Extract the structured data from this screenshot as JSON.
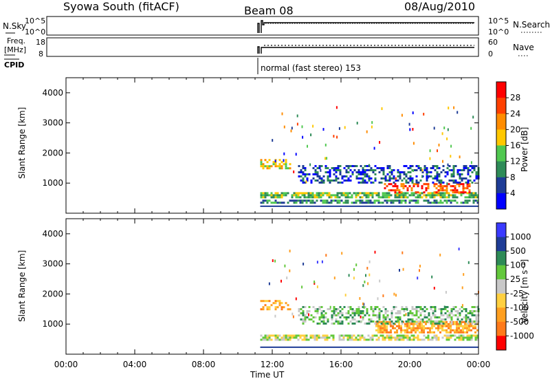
{
  "header": {
    "station": "Syowa South (fitACF)",
    "beam": "Beam 08",
    "date": "08/Aug/2010"
  },
  "top_panels": {
    "nsky_label": "N.Sky",
    "nsky_ticks": [
      "10^5",
      "10^0"
    ],
    "nsearch_label": "N.Search",
    "nsearch_ticks": [
      "10^5",
      "10^0"
    ],
    "freq_label": "Freq.",
    "freq_unit": "[MHz]",
    "freq_ticks": [
      "18",
      "8"
    ],
    "nave_label": "Nave",
    "nave_ticks": [
      "60",
      "0"
    ],
    "cpid_label": "CPID",
    "cpid_text": "normal (fast stereo) 153"
  },
  "x_axis": {
    "label": "Time UT",
    "ticks": [
      "00:00",
      "04:00",
      "08:00",
      "12:00",
      "16:00",
      "20:00",
      "00:00"
    ]
  },
  "colors": {
    "power_scale": [
      "#0000ff",
      "#1e3c96",
      "#2e8b57",
      "#50c850",
      "#ffc800",
      "#ff8c00",
      "#ff4000",
      "#ff0000"
    ],
    "velocity_scale": [
      "#ff0000",
      "#ff7a1a",
      "#ff9f20",
      "#ffd040",
      "#c8c8c8",
      "#63c83c",
      "#2e8b57",
      "#1e3c96",
      "#3a3aff"
    ]
  },
  "chart_data": [
    {
      "type": "heatmap",
      "panel": "power",
      "ylabel": "Slant Range [km]",
      "xlabel": "Time UT",
      "ylim": [
        0,
        4500
      ],
      "y_ticks": [
        "1000",
        "2000",
        "3000",
        "4000"
      ],
      "colorbar_label": "Power [dB]",
      "colorbar_ticks": [
        "4",
        "8",
        "12",
        "16",
        "20",
        "24",
        "28"
      ],
      "features": [
        {
          "time_start_h": 11.3,
          "time_end_h": 24.0,
          "range_min_km": 550,
          "range_max_km": 700,
          "dominant": "12-20 dB"
        },
        {
          "time_start_h": 11.3,
          "time_end_h": 24.0,
          "range_min_km": 350,
          "range_max_km": 450,
          "dominant": "8-16 dB"
        },
        {
          "time_start_h": 18.5,
          "time_end_h": 23.5,
          "range_min_km": 700,
          "range_max_km": 1000,
          "dominant": "24-32 dB"
        },
        {
          "time_start_h": 11.3,
          "time_end_h": 13.0,
          "range_min_km": 1500,
          "range_max_km": 1800,
          "dominant": "12-20 dB"
        },
        {
          "time_start_h": 13.5,
          "time_end_h": 24.0,
          "range_min_km": 1000,
          "range_max_km": 1600,
          "dominant": "4-12 dB"
        }
      ]
    },
    {
      "type": "heatmap",
      "panel": "velocity",
      "ylabel": "Slant Range [km]",
      "xlabel": "Time UT",
      "ylim": [
        0,
        4500
      ],
      "y_ticks": [
        "1000",
        "2000",
        "3000",
        "4000"
      ],
      "colorbar_label": "Velocity [m s⁻¹]",
      "colorbar_ticks": [
        "1000",
        "500",
        "100",
        "25",
        "-25",
        "-100",
        "-500",
        "-1000"
      ],
      "features": [
        {
          "time_start_h": 11.3,
          "time_end_h": 24.0,
          "range_min_km": 450,
          "range_max_km": 650,
          "dominant": "-25 to 25 m/s"
        },
        {
          "time_start_h": 18.0,
          "time_end_h": 24.0,
          "range_min_km": 700,
          "range_max_km": 1100,
          "dominant": "-500 to -100 m/s"
        },
        {
          "time_start_h": 11.3,
          "time_end_h": 13.0,
          "range_min_km": 1500,
          "range_max_km": 1800,
          "dominant": "-500 to -100 m/s"
        },
        {
          "time_start_h": 13.5,
          "time_end_h": 24.0,
          "range_min_km": 1000,
          "range_max_km": 1600,
          "dominant": "-100 to 100 m/s"
        }
      ]
    }
  ]
}
